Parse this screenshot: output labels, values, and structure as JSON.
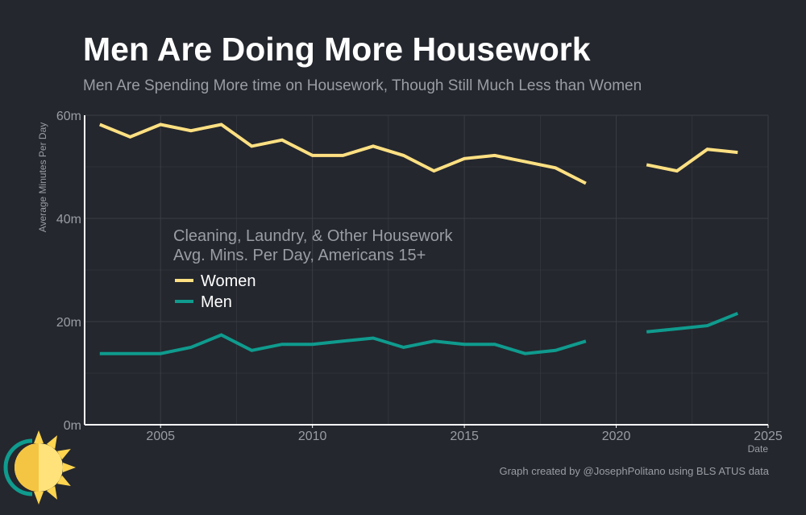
{
  "header": {
    "title": "Men Are Doing More Housework",
    "subtitle": "Men Are Spending More time on Housework, Though Still Much Less than Women"
  },
  "footer": {
    "caption": "Graph created by @JosephPolitano using BLS ATUS data"
  },
  "logo": {
    "icon": "sun-logo-icon"
  },
  "colors": {
    "background": "#24272e",
    "women": "#ffe082",
    "men": "#0f9b8e",
    "grid": "#3a3d44",
    "text_muted": "#9a9da3"
  },
  "chart_data": {
    "type": "line",
    "title": "Men Are Doing More Housework",
    "subtitle": "Men Are Spending More time on Housework, Though Still Much Less than Women",
    "xlabel": "Date",
    "ylabel": "Average Minutes Per Day",
    "xlim": [
      2002.5,
      2025
    ],
    "ylim": [
      0,
      60
    ],
    "x_ticks": [
      {
        "value": 2005,
        "label": "2005"
      },
      {
        "value": 2010,
        "label": "2010"
      },
      {
        "value": 2015,
        "label": "2015"
      },
      {
        "value": 2020,
        "label": "2020"
      },
      {
        "value": 2025,
        "label": "2025"
      }
    ],
    "y_ticks": [
      {
        "value": 0,
        "label": "0m"
      },
      {
        "value": 20,
        "label": "20m"
      },
      {
        "value": 40,
        "label": "40m"
      },
      {
        "value": 60,
        "label": "60m"
      }
    ],
    "grid": true,
    "legend": {
      "position": "center-left",
      "title_line1": "Cleaning, Laundry, & Other Housework",
      "title_line2": "Avg. Mins. Per Day, Americans 15+"
    },
    "x": [
      2003,
      2004,
      2005,
      2006,
      2007,
      2008,
      2009,
      2010,
      2011,
      2012,
      2013,
      2014,
      2015,
      2016,
      2017,
      2018,
      2019,
      2020,
      2021,
      2022,
      2023,
      2024
    ],
    "series": [
      {
        "name": "Women",
        "color": "#ffe082",
        "values": [
          58.2,
          55.8,
          58.2,
          57.0,
          58.2,
          54.0,
          55.2,
          52.2,
          52.2,
          54.0,
          52.2,
          49.2,
          51.6,
          52.2,
          51.0,
          49.8,
          46.8,
          null,
          50.4,
          49.2,
          53.4,
          52.8
        ]
      },
      {
        "name": "Men",
        "color": "#0f9b8e",
        "values": [
          13.8,
          13.8,
          13.8,
          15.0,
          17.4,
          14.4,
          15.6,
          15.6,
          16.2,
          16.8,
          15.0,
          16.2,
          15.6,
          15.6,
          13.8,
          14.4,
          16.2,
          null,
          18.0,
          18.6,
          19.2,
          21.6
        ]
      }
    ]
  }
}
